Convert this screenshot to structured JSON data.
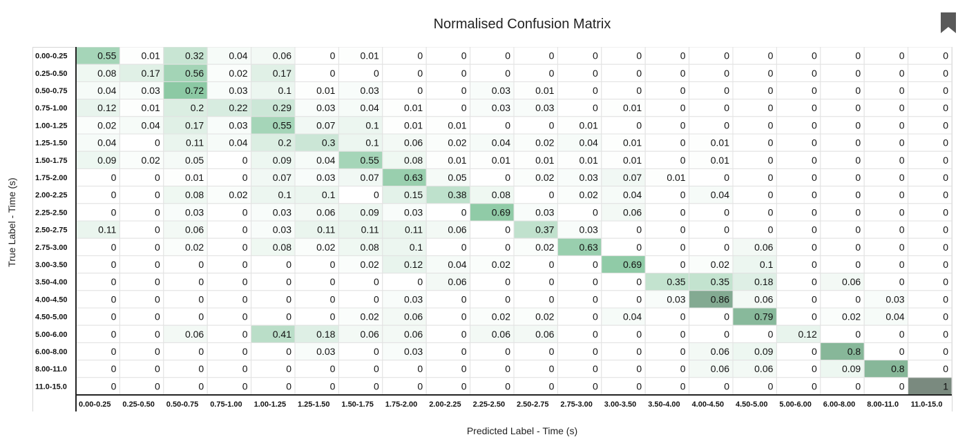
{
  "chart_data": {
    "type": "heatmap",
    "title": "Normalised Confusion Matrix",
    "xlabel": "Predicted Label - Time (s)",
    "ylabel": "True Label - Time (s)",
    "row_labels": [
      "0.00-0.25",
      "0.25-0.50",
      "0.50-0.75",
      "0.75-1.00",
      "1.00-1.25",
      "1.25-1.50",
      "1.50-1.75",
      "1.75-2.00",
      "2.00-2.25",
      "2.25-2.50",
      "2.50-2.75",
      "2.75-3.00",
      "3.00-3.50",
      "3.50-4.00",
      "4.00-4.50",
      "4.50-5.00",
      "5.00-6.00",
      "6.00-8.00",
      "8.00-11.0",
      "11.0-15.0"
    ],
    "col_labels": [
      "0.00-0.25",
      "0.25-0.50",
      "0.50-0.75",
      "0.75-1.00",
      "1.00-1.25",
      "1.25-1.50",
      "1.50-1.75",
      "1.75-2.00",
      "2.00-2.25",
      "2.25-2.50",
      "2.50-2.75",
      "2.75-3.00",
      "3.00-3.50",
      "3.50-4.00",
      "4.00-4.50",
      "4.50-5.00",
      "5.00-6.00",
      "6.00-8.00",
      "8.00-11.0",
      "11.0-15.0"
    ],
    "values": [
      [
        0.55,
        0.01,
        0.32,
        0.04,
        0.06,
        0,
        0.01,
        0,
        0,
        0,
        0,
        0,
        0,
        0,
        0,
        0,
        0,
        0,
        0,
        0
      ],
      [
        0.08,
        0.17,
        0.56,
        0.02,
        0.17,
        0,
        0,
        0,
        0,
        0,
        0,
        0,
        0,
        0,
        0,
        0,
        0,
        0,
        0,
        0
      ],
      [
        0.04,
        0.03,
        0.72,
        0.03,
        0.1,
        0.01,
        0.03,
        0,
        0,
        0.03,
        0.01,
        0,
        0,
        0,
        0,
        0,
        0,
        0,
        0,
        0
      ],
      [
        0.12,
        0.01,
        0.2,
        0.22,
        0.29,
        0.03,
        0.04,
        0.01,
        0,
        0.03,
        0.03,
        0,
        0.01,
        0,
        0,
        0,
        0,
        0,
        0,
        0
      ],
      [
        0.02,
        0.04,
        0.17,
        0.03,
        0.55,
        0.07,
        0.1,
        0.01,
        0.01,
        0,
        0,
        0.01,
        0,
        0,
        0,
        0,
        0,
        0,
        0,
        0
      ],
      [
        0.04,
        0,
        0.11,
        0.04,
        0.2,
        0.3,
        0.1,
        0.06,
        0.02,
        0.04,
        0.02,
        0.04,
        0.01,
        0,
        0.01,
        0,
        0,
        0,
        0,
        0
      ],
      [
        0.09,
        0.02,
        0.05,
        0,
        0.09,
        0.04,
        0.55,
        0.08,
        0.01,
        0.01,
        0.01,
        0.01,
        0.01,
        0,
        0.01,
        0,
        0,
        0,
        0,
        0
      ],
      [
        0,
        0,
        0.01,
        0,
        0.07,
        0.03,
        0.07,
        0.63,
        0.05,
        0,
        0.02,
        0.03,
        0.07,
        0.01,
        0,
        0,
        0,
        0,
        0,
        0
      ],
      [
        0,
        0,
        0.08,
        0.02,
        0.1,
        0.1,
        0,
        0.15,
        0.38,
        0.08,
        0,
        0.02,
        0.04,
        0,
        0.04,
        0,
        0,
        0,
        0,
        0
      ],
      [
        0,
        0,
        0.03,
        0,
        0.03,
        0.06,
        0.09,
        0.03,
        0,
        0.69,
        0.03,
        0,
        0.06,
        0,
        0,
        0,
        0,
        0,
        0,
        0
      ],
      [
        0.11,
        0,
        0.06,
        0,
        0.03,
        0.11,
        0.11,
        0.11,
        0.06,
        0,
        0.37,
        0.03,
        0,
        0,
        0,
        0,
        0,
        0,
        0,
        0
      ],
      [
        0,
        0,
        0.02,
        0,
        0.08,
        0.02,
        0.08,
        0.1,
        0,
        0,
        0.02,
        0.63,
        0,
        0,
        0,
        0.06,
        0,
        0,
        0,
        0
      ],
      [
        0,
        0,
        0,
        0,
        0,
        0,
        0.02,
        0.12,
        0.04,
        0.02,
        0,
        0,
        0.69,
        0,
        0.02,
        0.1,
        0,
        0,
        0,
        0
      ],
      [
        0,
        0,
        0,
        0,
        0,
        0,
        0,
        0,
        0.06,
        0,
        0,
        0,
        0,
        0.35,
        0.35,
        0.18,
        0,
        0.06,
        0,
        0
      ],
      [
        0,
        0,
        0,
        0,
        0,
        0,
        0,
        0.03,
        0,
        0,
        0,
        0,
        0,
        0.03,
        0.86,
        0.06,
        0,
        0,
        0.03,
        0
      ],
      [
        0,
        0,
        0,
        0,
        0,
        0,
        0.02,
        0.06,
        0,
        0.02,
        0.02,
        0,
        0.04,
        0,
        0,
        0.79,
        0,
        0.02,
        0.04,
        0
      ],
      [
        0,
        0,
        0.06,
        0,
        0.41,
        0.18,
        0.06,
        0.06,
        0,
        0.06,
        0.06,
        0,
        0,
        0,
        0,
        0,
        0.12,
        0,
        0,
        0
      ],
      [
        0,
        0,
        0,
        0,
        0,
        0.03,
        0,
        0.03,
        0,
        0,
        0,
        0,
        0,
        0,
        0.06,
        0.09,
        0,
        0.8,
        0,
        0
      ],
      [
        0,
        0,
        0,
        0,
        0,
        0,
        0,
        0,
        0,
        0,
        0,
        0,
        0,
        0,
        0.06,
        0.06,
        0,
        0.09,
        0.8,
        0
      ],
      [
        0,
        0,
        0,
        0,
        0,
        0,
        0,
        0,
        0,
        0,
        0,
        0,
        0,
        0,
        0,
        0,
        0,
        0,
        0,
        1
      ]
    ],
    "vmin": 0,
    "vmax": 1,
    "colormap": {
      "low": "#ffffff",
      "mid": "#8cc9a4",
      "high": "#7a8a7f"
    },
    "grid": true
  },
  "icons": {
    "bookmark": "bookmark-icon"
  }
}
